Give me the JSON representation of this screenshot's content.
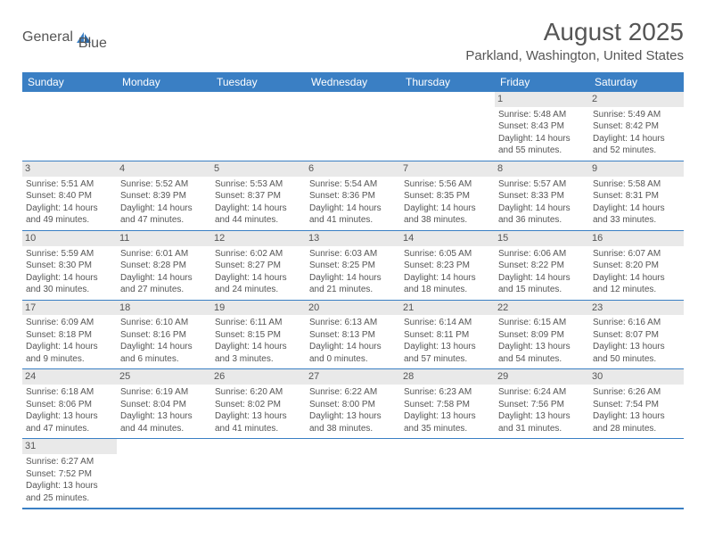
{
  "logo": {
    "text1": "General",
    "text2": "Blue"
  },
  "title": "August 2025",
  "location": "Parkland, Washington, United States",
  "colors": {
    "header_bg": "#3a7fc4",
    "header_text": "#ffffff",
    "daynum_bg": "#e9e9e9",
    "text": "#555555",
    "border": "#3a7fc4"
  },
  "weekdays": [
    "Sunday",
    "Monday",
    "Tuesday",
    "Wednesday",
    "Thursday",
    "Friday",
    "Saturday"
  ],
  "weeks": [
    [
      null,
      null,
      null,
      null,
      null,
      {
        "d": "1",
        "sr": "Sunrise: 5:48 AM",
        "ss": "Sunset: 8:43 PM",
        "dl1": "Daylight: 14 hours",
        "dl2": "and 55 minutes."
      },
      {
        "d": "2",
        "sr": "Sunrise: 5:49 AM",
        "ss": "Sunset: 8:42 PM",
        "dl1": "Daylight: 14 hours",
        "dl2": "and 52 minutes."
      }
    ],
    [
      {
        "d": "3",
        "sr": "Sunrise: 5:51 AM",
        "ss": "Sunset: 8:40 PM",
        "dl1": "Daylight: 14 hours",
        "dl2": "and 49 minutes."
      },
      {
        "d": "4",
        "sr": "Sunrise: 5:52 AM",
        "ss": "Sunset: 8:39 PM",
        "dl1": "Daylight: 14 hours",
        "dl2": "and 47 minutes."
      },
      {
        "d": "5",
        "sr": "Sunrise: 5:53 AM",
        "ss": "Sunset: 8:37 PM",
        "dl1": "Daylight: 14 hours",
        "dl2": "and 44 minutes."
      },
      {
        "d": "6",
        "sr": "Sunrise: 5:54 AM",
        "ss": "Sunset: 8:36 PM",
        "dl1": "Daylight: 14 hours",
        "dl2": "and 41 minutes."
      },
      {
        "d": "7",
        "sr": "Sunrise: 5:56 AM",
        "ss": "Sunset: 8:35 PM",
        "dl1": "Daylight: 14 hours",
        "dl2": "and 38 minutes."
      },
      {
        "d": "8",
        "sr": "Sunrise: 5:57 AM",
        "ss": "Sunset: 8:33 PM",
        "dl1": "Daylight: 14 hours",
        "dl2": "and 36 minutes."
      },
      {
        "d": "9",
        "sr": "Sunrise: 5:58 AM",
        "ss": "Sunset: 8:31 PM",
        "dl1": "Daylight: 14 hours",
        "dl2": "and 33 minutes."
      }
    ],
    [
      {
        "d": "10",
        "sr": "Sunrise: 5:59 AM",
        "ss": "Sunset: 8:30 PM",
        "dl1": "Daylight: 14 hours",
        "dl2": "and 30 minutes."
      },
      {
        "d": "11",
        "sr": "Sunrise: 6:01 AM",
        "ss": "Sunset: 8:28 PM",
        "dl1": "Daylight: 14 hours",
        "dl2": "and 27 minutes."
      },
      {
        "d": "12",
        "sr": "Sunrise: 6:02 AM",
        "ss": "Sunset: 8:27 PM",
        "dl1": "Daylight: 14 hours",
        "dl2": "and 24 minutes."
      },
      {
        "d": "13",
        "sr": "Sunrise: 6:03 AM",
        "ss": "Sunset: 8:25 PM",
        "dl1": "Daylight: 14 hours",
        "dl2": "and 21 minutes."
      },
      {
        "d": "14",
        "sr": "Sunrise: 6:05 AM",
        "ss": "Sunset: 8:23 PM",
        "dl1": "Daylight: 14 hours",
        "dl2": "and 18 minutes."
      },
      {
        "d": "15",
        "sr": "Sunrise: 6:06 AM",
        "ss": "Sunset: 8:22 PM",
        "dl1": "Daylight: 14 hours",
        "dl2": "and 15 minutes."
      },
      {
        "d": "16",
        "sr": "Sunrise: 6:07 AM",
        "ss": "Sunset: 8:20 PM",
        "dl1": "Daylight: 14 hours",
        "dl2": "and 12 minutes."
      }
    ],
    [
      {
        "d": "17",
        "sr": "Sunrise: 6:09 AM",
        "ss": "Sunset: 8:18 PM",
        "dl1": "Daylight: 14 hours",
        "dl2": "and 9 minutes."
      },
      {
        "d": "18",
        "sr": "Sunrise: 6:10 AM",
        "ss": "Sunset: 8:16 PM",
        "dl1": "Daylight: 14 hours",
        "dl2": "and 6 minutes."
      },
      {
        "d": "19",
        "sr": "Sunrise: 6:11 AM",
        "ss": "Sunset: 8:15 PM",
        "dl1": "Daylight: 14 hours",
        "dl2": "and 3 minutes."
      },
      {
        "d": "20",
        "sr": "Sunrise: 6:13 AM",
        "ss": "Sunset: 8:13 PM",
        "dl1": "Daylight: 14 hours",
        "dl2": "and 0 minutes."
      },
      {
        "d": "21",
        "sr": "Sunrise: 6:14 AM",
        "ss": "Sunset: 8:11 PM",
        "dl1": "Daylight: 13 hours",
        "dl2": "and 57 minutes."
      },
      {
        "d": "22",
        "sr": "Sunrise: 6:15 AM",
        "ss": "Sunset: 8:09 PM",
        "dl1": "Daylight: 13 hours",
        "dl2": "and 54 minutes."
      },
      {
        "d": "23",
        "sr": "Sunrise: 6:16 AM",
        "ss": "Sunset: 8:07 PM",
        "dl1": "Daylight: 13 hours",
        "dl2": "and 50 minutes."
      }
    ],
    [
      {
        "d": "24",
        "sr": "Sunrise: 6:18 AM",
        "ss": "Sunset: 8:06 PM",
        "dl1": "Daylight: 13 hours",
        "dl2": "and 47 minutes."
      },
      {
        "d": "25",
        "sr": "Sunrise: 6:19 AM",
        "ss": "Sunset: 8:04 PM",
        "dl1": "Daylight: 13 hours",
        "dl2": "and 44 minutes."
      },
      {
        "d": "26",
        "sr": "Sunrise: 6:20 AM",
        "ss": "Sunset: 8:02 PM",
        "dl1": "Daylight: 13 hours",
        "dl2": "and 41 minutes."
      },
      {
        "d": "27",
        "sr": "Sunrise: 6:22 AM",
        "ss": "Sunset: 8:00 PM",
        "dl1": "Daylight: 13 hours",
        "dl2": "and 38 minutes."
      },
      {
        "d": "28",
        "sr": "Sunrise: 6:23 AM",
        "ss": "Sunset: 7:58 PM",
        "dl1": "Daylight: 13 hours",
        "dl2": "and 35 minutes."
      },
      {
        "d": "29",
        "sr": "Sunrise: 6:24 AM",
        "ss": "Sunset: 7:56 PM",
        "dl1": "Daylight: 13 hours",
        "dl2": "and 31 minutes."
      },
      {
        "d": "30",
        "sr": "Sunrise: 6:26 AM",
        "ss": "Sunset: 7:54 PM",
        "dl1": "Daylight: 13 hours",
        "dl2": "and 28 minutes."
      }
    ],
    [
      {
        "d": "31",
        "sr": "Sunrise: 6:27 AM",
        "ss": "Sunset: 7:52 PM",
        "dl1": "Daylight: 13 hours",
        "dl2": "and 25 minutes."
      },
      null,
      null,
      null,
      null,
      null,
      null
    ]
  ]
}
